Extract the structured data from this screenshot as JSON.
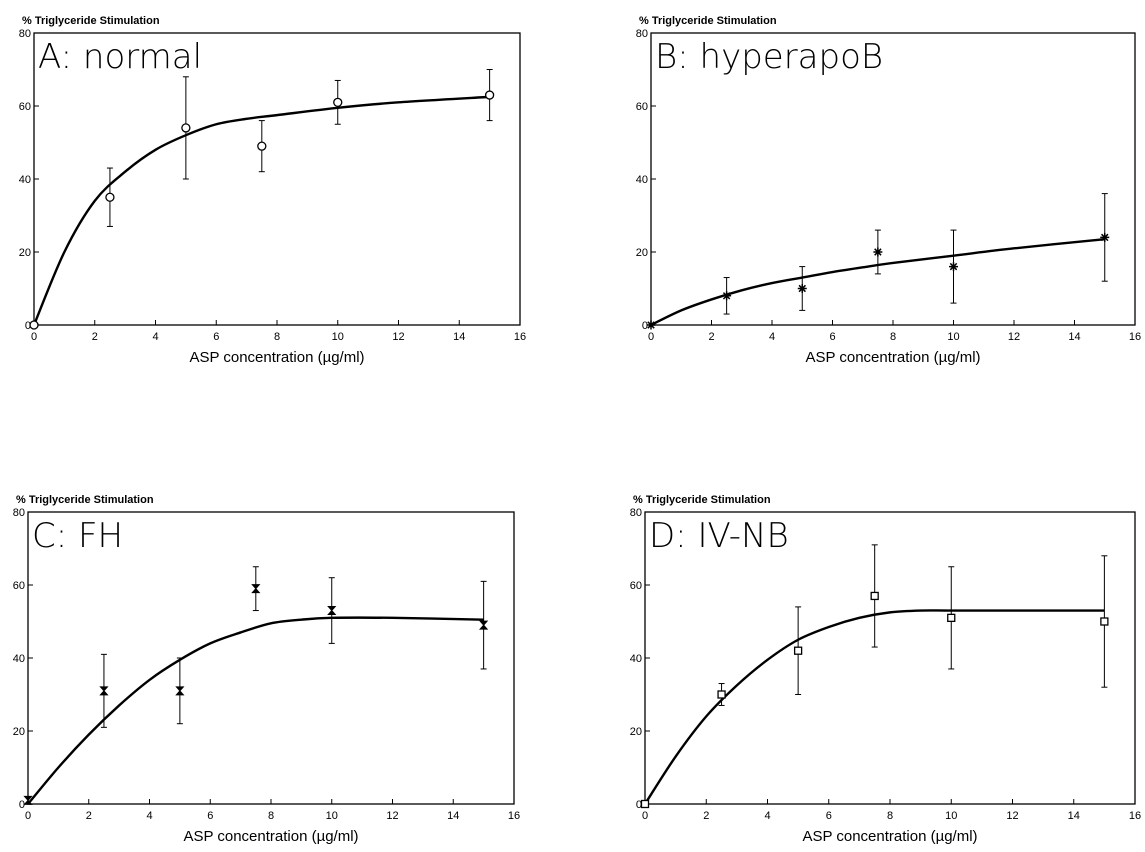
{
  "chart_data": [
    {
      "type": "line",
      "title": "A: normal",
      "ylabel": "% Triglyceride Stimulation",
      "xlabel": "ASP concentration (µg/ml)",
      "xlim": [
        0,
        16
      ],
      "ylim": [
        0,
        80
      ],
      "xticks": [
        0,
        2,
        4,
        6,
        8,
        10,
        12,
        14,
        16
      ],
      "yticks": [
        0,
        20,
        40,
        60,
        80
      ],
      "marker": "circle",
      "points": [
        {
          "x": 0,
          "y": 0,
          "err": 0
        },
        {
          "x": 2.5,
          "y": 35,
          "err": 8
        },
        {
          "x": 5,
          "y": 54,
          "err": 14
        },
        {
          "x": 7.5,
          "y": 49,
          "err": 7
        },
        {
          "x": 10,
          "y": 61,
          "err": 6
        },
        {
          "x": 15,
          "y": 63,
          "err": 7
        }
      ],
      "fit": {
        "x": [
          0,
          1,
          2,
          3,
          4,
          5,
          6,
          7,
          8,
          10,
          12,
          15
        ],
        "y": [
          0,
          20,
          34,
          42,
          48,
          52,
          55,
          56.5,
          57.5,
          59.5,
          61,
          62.5
        ]
      }
    },
    {
      "type": "line",
      "title": "B: hyperapoB",
      "ylabel": "% Triglyceride Stimulation",
      "xlabel": "ASP concentration (µg/ml)",
      "xlim": [
        0,
        16
      ],
      "ylim": [
        0,
        80
      ],
      "xticks": [
        0,
        2,
        4,
        6,
        8,
        10,
        12,
        14,
        16
      ],
      "yticks": [
        0,
        20,
        40,
        60,
        80
      ],
      "marker": "asterisk",
      "points": [
        {
          "x": 0,
          "y": 0,
          "err": 0
        },
        {
          "x": 2.5,
          "y": 8,
          "err": 5
        },
        {
          "x": 5,
          "y": 10,
          "err": 6
        },
        {
          "x": 7.5,
          "y": 20,
          "err": 6
        },
        {
          "x": 10,
          "y": 16,
          "err": 10
        },
        {
          "x": 15,
          "y": 24,
          "err": 12
        }
      ],
      "fit": {
        "x": [
          0,
          1,
          2,
          3,
          4,
          5,
          6,
          7,
          8,
          10,
          12,
          15
        ],
        "y": [
          0,
          4,
          7,
          9.5,
          11.5,
          13,
          14.5,
          15.8,
          17,
          19,
          21,
          23.5
        ]
      }
    },
    {
      "type": "line",
      "title": "C: FH",
      "ylabel": "% Triglyceride Stimulation",
      "xlabel": "ASP concentration (µg/ml)",
      "xlim": [
        0,
        16
      ],
      "ylim": [
        0,
        80
      ],
      "xticks": [
        0,
        2,
        4,
        6,
        8,
        10,
        12,
        14,
        16
      ],
      "yticks": [
        0,
        20,
        40,
        60,
        80
      ],
      "marker": "bowtie",
      "points": [
        {
          "x": 0,
          "y": 1,
          "err": 0
        },
        {
          "x": 2.5,
          "y": 31,
          "err": 10
        },
        {
          "x": 5,
          "y": 31,
          "err": 9
        },
        {
          "x": 7.5,
          "y": 59,
          "err": 6
        },
        {
          "x": 10,
          "y": 53,
          "err": 9
        },
        {
          "x": 15,
          "y": 49,
          "err": 12
        }
      ],
      "fit": {
        "x": [
          0,
          1,
          2,
          3,
          4,
          5,
          6,
          7,
          8,
          9,
          10,
          12,
          15
        ],
        "y": [
          0,
          10,
          19,
          27,
          34,
          39.5,
          44,
          47,
          49.5,
          50.5,
          51,
          51,
          50.5
        ]
      }
    },
    {
      "type": "line",
      "title": "D: IV-NB",
      "ylabel": "% Triglyceride Stimulation",
      "xlabel": "ASP concentration (µg/ml)",
      "xlim": [
        0,
        16
      ],
      "ylim": [
        0,
        80
      ],
      "xticks": [
        0,
        2,
        4,
        6,
        8,
        10,
        12,
        14,
        16
      ],
      "yticks": [
        0,
        20,
        40,
        60,
        80
      ],
      "marker": "square",
      "points": [
        {
          "x": 0,
          "y": 0,
          "err": 0
        },
        {
          "x": 2.5,
          "y": 30,
          "err": 3
        },
        {
          "x": 5,
          "y": 42,
          "err": 12
        },
        {
          "x": 7.5,
          "y": 57,
          "err": 14
        },
        {
          "x": 10,
          "y": 51,
          "err": 14
        },
        {
          "x": 15,
          "y": 50,
          "err": 18
        }
      ],
      "fit": {
        "x": [
          0,
          1,
          2,
          3,
          4,
          5,
          6,
          7,
          8,
          9,
          10,
          12,
          15
        ],
        "y": [
          0,
          13,
          24,
          32.5,
          39.5,
          45,
          48.5,
          51,
          52.5,
          53,
          53,
          53,
          53
        ]
      }
    }
  ]
}
